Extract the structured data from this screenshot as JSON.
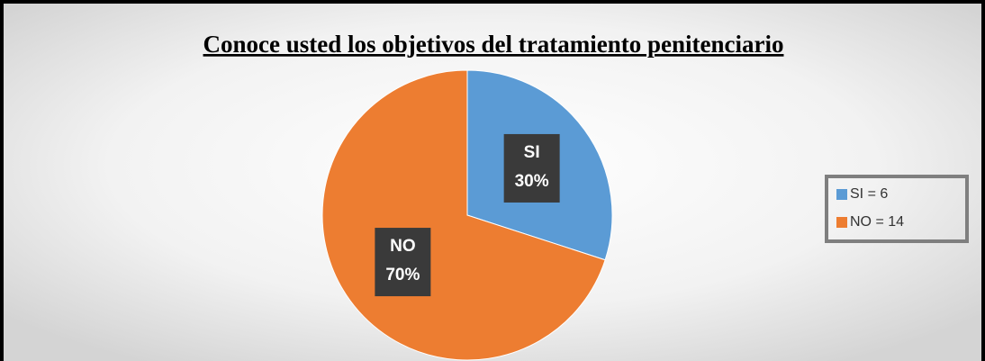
{
  "chart_data": {
    "type": "pie",
    "title": "Conoce usted  los objetivos del tratamiento penitenciario",
    "categories": [
      "SI",
      "NO"
    ],
    "values": [
      30,
      70
    ],
    "value_labels": [
      "30%",
      "70%"
    ],
    "colors": [
      "#5b9bd5",
      "#ed7d31"
    ],
    "legend": [
      "SI = 6",
      "NO = 14"
    ],
    "legend_position": "right"
  }
}
